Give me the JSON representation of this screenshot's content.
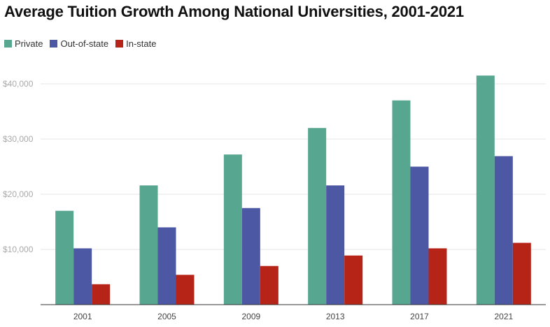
{
  "chart_data": {
    "type": "bar",
    "title": "Average Tuition Growth Among National Universities, 2001-2021",
    "categories": [
      "2001",
      "2005",
      "2009",
      "2013",
      "2017",
      "2021"
    ],
    "series": [
      {
        "name": "Private",
        "color": "#57a690",
        "values": [
          17000,
          21600,
          27200,
          32000,
          37000,
          41500
        ]
      },
      {
        "name": "Out-of-state",
        "color": "#4c58a4",
        "values": [
          10200,
          14000,
          17500,
          21600,
          25000,
          26900
        ]
      },
      {
        "name": "In-state",
        "color": "#b62418",
        "values": [
          3700,
          5400,
          7000,
          8900,
          10200,
          11200
        ]
      }
    ],
    "yticks": [
      10000,
      20000,
      30000,
      40000
    ],
    "ytick_labels": [
      "$10,000",
      "$20,000",
      "$30,000",
      "$40,000"
    ],
    "ylim": [
      0,
      42000
    ],
    "xlabel": "",
    "ylabel": "",
    "legend_position": "top-left"
  }
}
